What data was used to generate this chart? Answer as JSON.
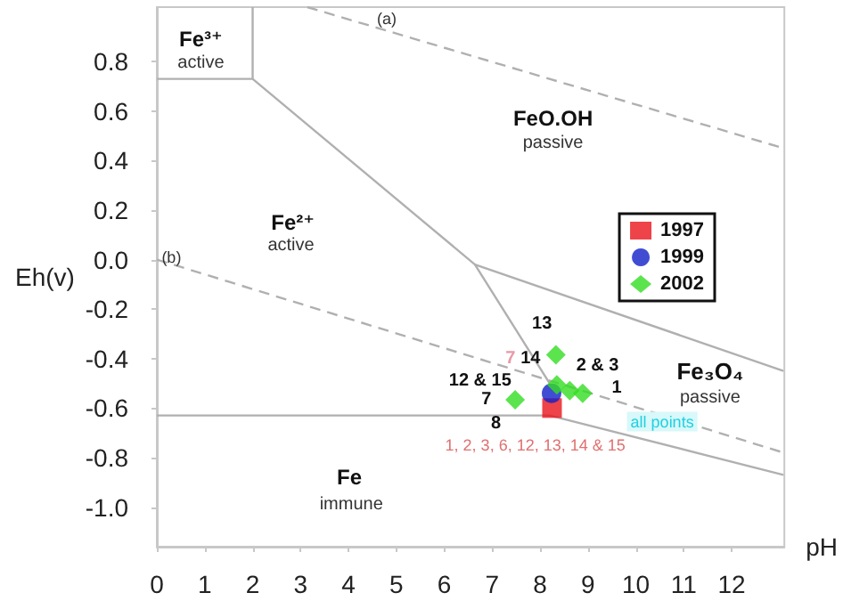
{
  "chart_data": {
    "type": "scatter",
    "xlabel": "pH",
    "ylabel": "Eh(v)",
    "xlim": [
      0,
      13.1
    ],
    "ylim": [
      -1.16,
      1.02
    ],
    "xticks": [
      0,
      1,
      2,
      3,
      4,
      5,
      6,
      7,
      8,
      9,
      10,
      11,
      12
    ],
    "yticks": [
      {
        "value": -1.0,
        "label": "-1.0"
      },
      {
        "value": -0.8,
        "label": "-0.8"
      },
      {
        "value": -0.6,
        "label": "-0.6"
      },
      {
        "value": -0.4,
        "label": "-0.4"
      },
      {
        "value": -0.2,
        "label": "-0.2"
      },
      {
        "value": 0,
        "label": "0.0"
      },
      {
        "value": 0.2,
        "label": "0.2"
      },
      {
        "value": 0.4,
        "label": "0.4"
      },
      {
        "value": 0.6,
        "label": "0.6"
      },
      {
        "value": 0.8,
        "label": "0.8"
      }
    ],
    "grid": false,
    "legend": "right",
    "series": [
      {
        "type": "line",
        "color": "#b0b0b0",
        "line_style": "solid",
        "marker": "none",
        "x": [
          0,
          2,
          2
        ],
        "values": [
          0.73,
          0.73,
          1.02
        ]
      },
      {
        "type": "line",
        "color": "#b0b0b0",
        "line_style": "solid",
        "marker": "none",
        "x": [
          2,
          6.64,
          8.2
        ],
        "values": [
          0.73,
          -0.02,
          -0.5
        ]
      },
      {
        "type": "line",
        "color": "#b0b0b0",
        "line_style": "solid",
        "marker": "none",
        "x": [
          6.64,
          13.08
        ],
        "values": [
          -0.02,
          -0.45
        ]
      },
      {
        "type": "line",
        "color": "#b0b0b0",
        "line_style": "solid",
        "marker": "none",
        "x": [
          0,
          8.2,
          13.08
        ],
        "values": [
          -0.63,
          -0.63,
          -0.87
        ]
      },
      {
        "type": "line",
        "color": "#b0b0b0",
        "line_style": "dashed",
        "marker": "none",
        "x": [
          3.14,
          13.08
        ],
        "values": [
          1.02,
          0.45
        ]
      },
      {
        "type": "line",
        "color": "#b0b0b0",
        "line_style": "dashed",
        "marker": "none",
        "x": [
          0,
          13.08
        ],
        "values": [
          0,
          -0.78
        ]
      },
      {
        "name": "1997",
        "color": "#e8141c",
        "marker": "square",
        "x": [
          8.25
        ],
        "values": [
          -0.6
        ]
      },
      {
        "name": "1999",
        "color": "#1020c8",
        "marker": "circle",
        "x": [
          8.24
        ],
        "values": [
          -0.54
        ]
      },
      {
        "name": "2002",
        "color": "#33dd22",
        "marker": "diamond",
        "x": [
          8.33,
          8.35,
          8.62,
          8.89,
          7.48
        ],
        "values": [
          -0.385,
          -0.506,
          -0.53,
          -0.54,
          -0.566
        ]
      }
    ],
    "annotations": [
      "(a)",
      "(b)",
      "Fe³⁺",
      "active",
      "FeO.OH",
      "passive",
      "Fe²⁺",
      "active",
      "Fe₃O₄",
      "passive",
      "Fe",
      "immune",
      "13",
      "7",
      "14",
      "12 & 15",
      "2 & 3",
      "1",
      "7",
      "8",
      "1, 2, 3, 6, 12, 13, 14 & 15",
      "all points"
    ]
  }
}
